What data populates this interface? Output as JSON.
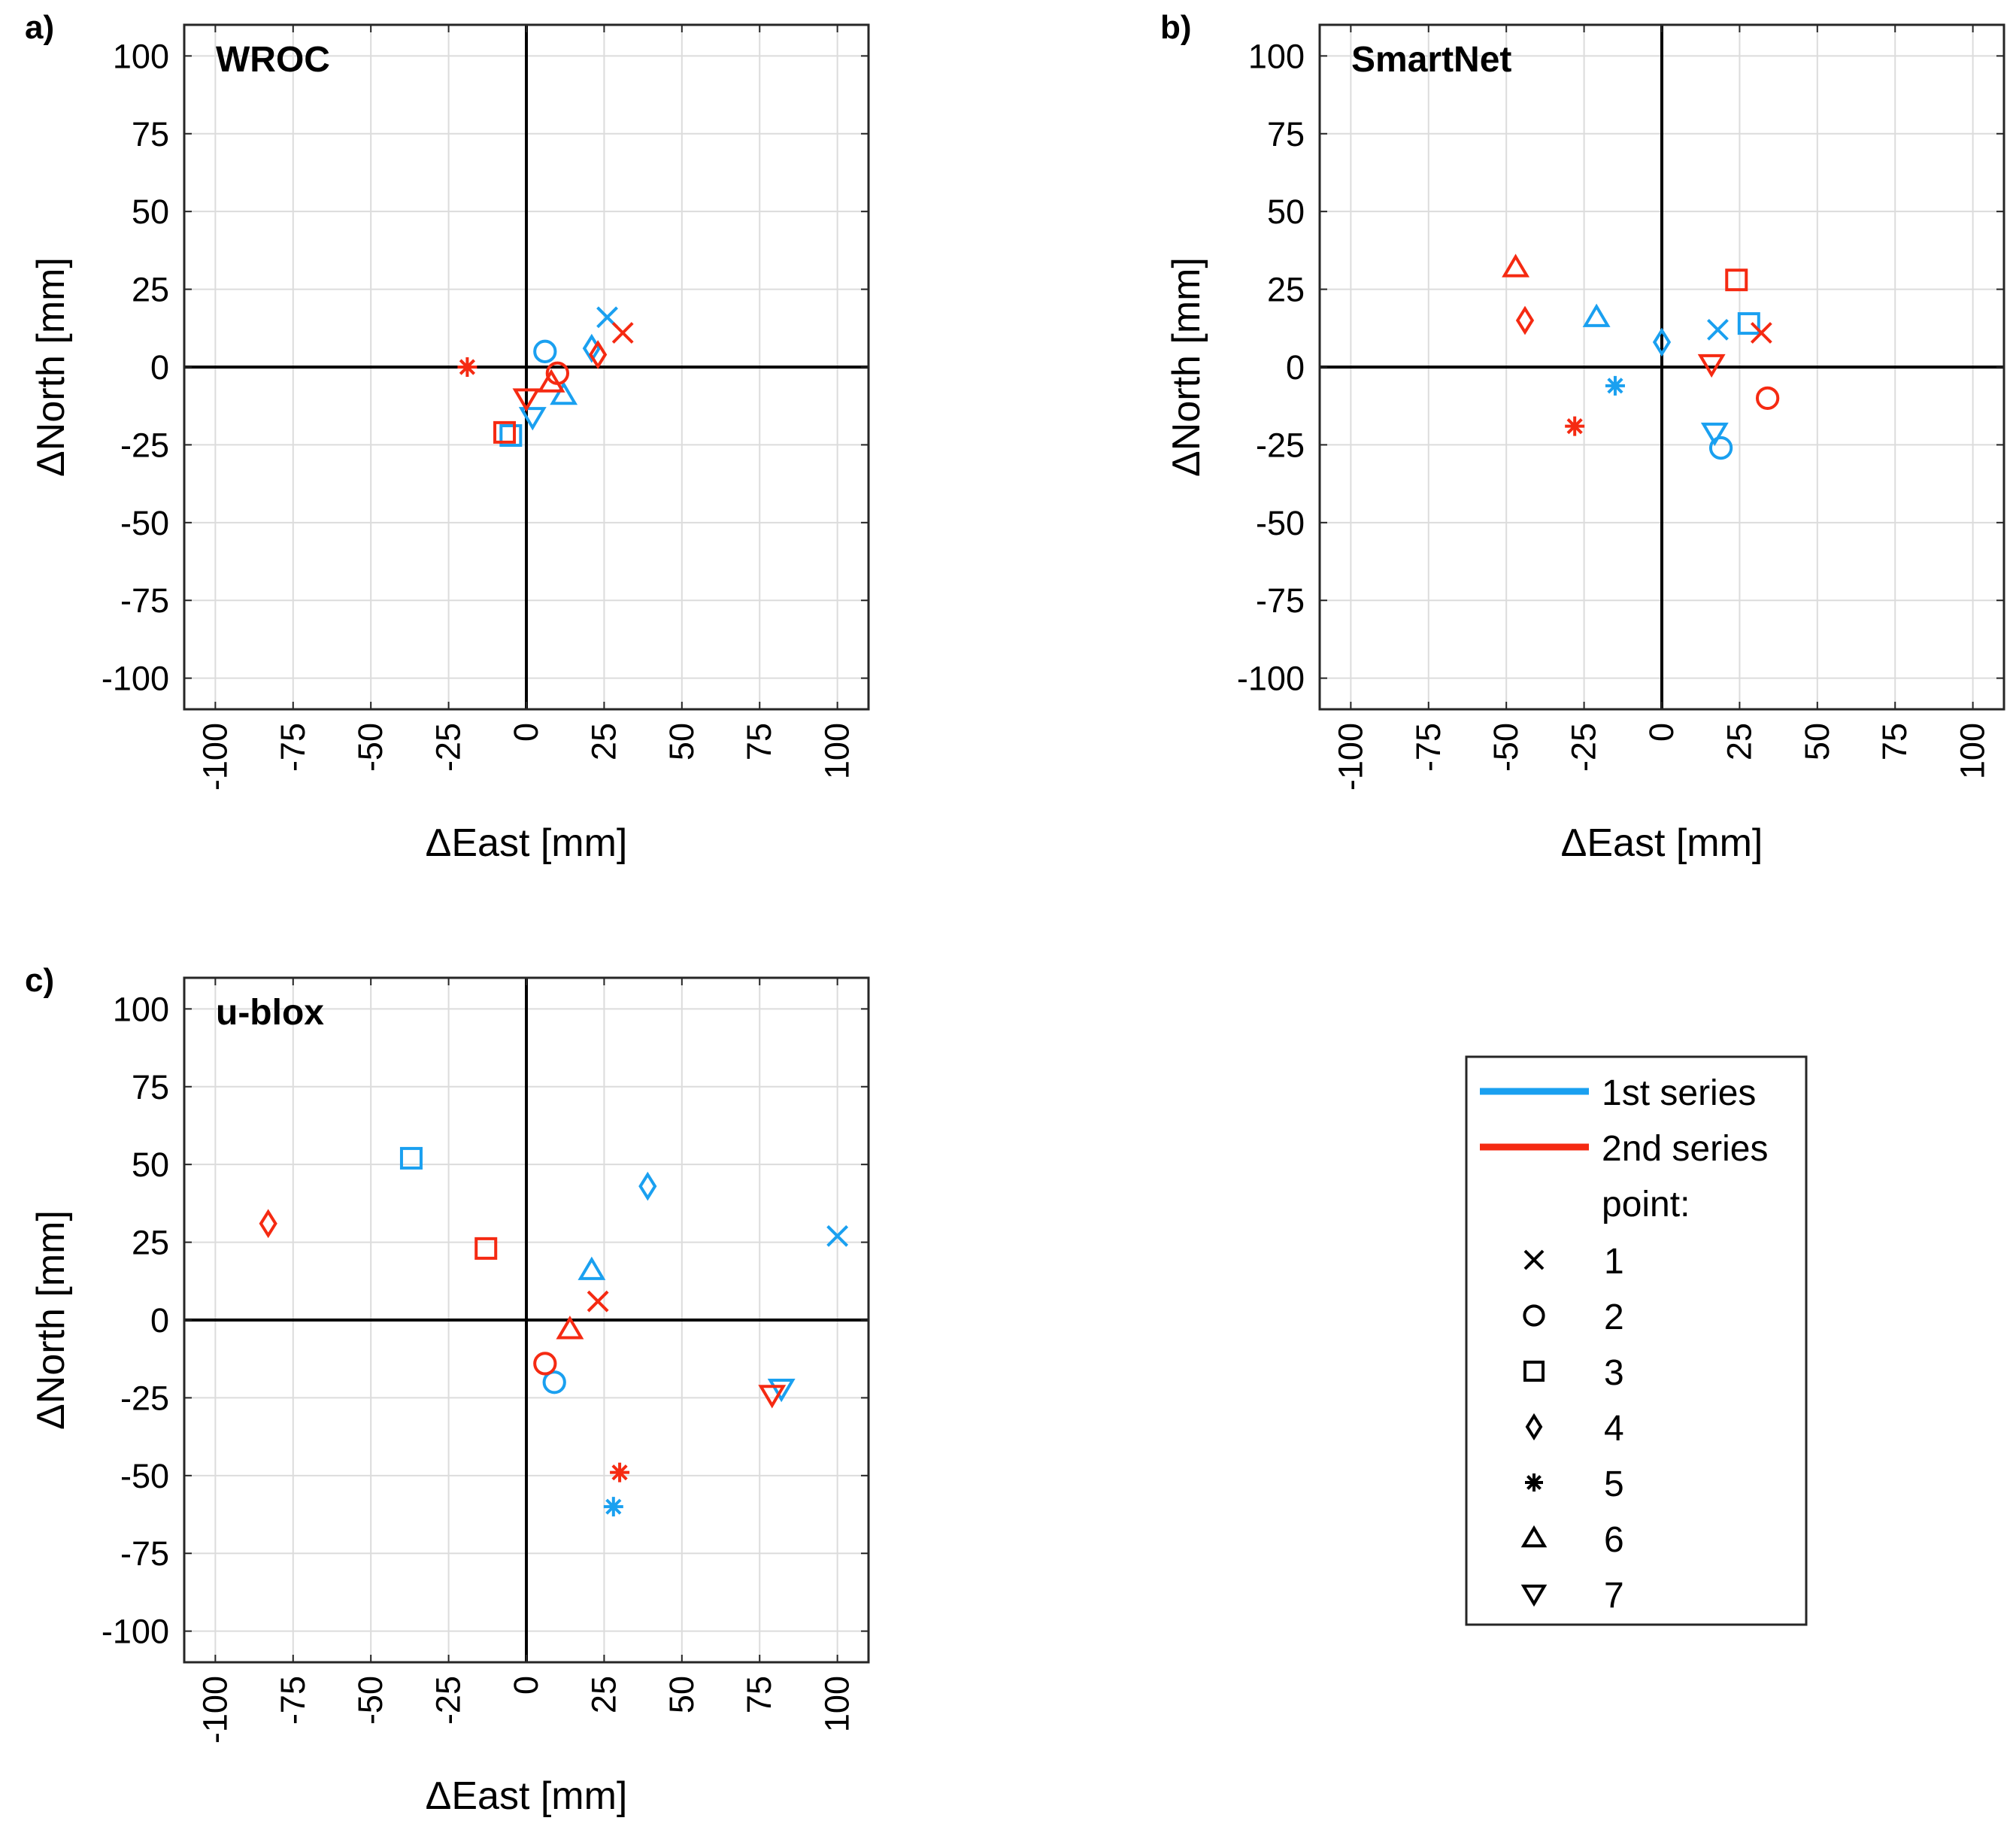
{
  "legend": {
    "series1": "1st series",
    "series2": "2nd series",
    "point_header": "point:",
    "points": [
      {
        "id": "1",
        "marker": "x"
      },
      {
        "id": "2",
        "marker": "o"
      },
      {
        "id": "3",
        "marker": "s"
      },
      {
        "id": "4",
        "marker": "d"
      },
      {
        "id": "5",
        "marker": "*"
      },
      {
        "id": "6",
        "marker": "^"
      },
      {
        "id": "7",
        "marker": "v"
      }
    ]
  },
  "colors": {
    "series1": "#1aa0f0",
    "series2": "#f52a12",
    "axes": "#000000",
    "grid": "#dcdcdc"
  },
  "chart_data": [
    {
      "type": "scatter",
      "panel_label": "a)",
      "title": "WROC",
      "xlabel": "ΔEast [mm]",
      "ylabel": "ΔNorth [mm]",
      "xlim": [
        -110,
        110
      ],
      "ylim": [
        -110,
        110
      ],
      "xticks": [
        -100,
        -75,
        -50,
        -25,
        0,
        25,
        50,
        75,
        100
      ],
      "yticks": [
        100,
        75,
        50,
        25,
        0,
        -25,
        -50,
        -75,
        -100
      ],
      "grid": true,
      "series": [
        {
          "name": "1st series",
          "points": [
            {
              "point": "1",
              "x": 26,
              "y": 16
            },
            {
              "point": "2",
              "x": 6,
              "y": 5
            },
            {
              "point": "3",
              "x": -5,
              "y": -22
            },
            {
              "point": "4",
              "x": 21,
              "y": 6
            },
            {
              "point": "6",
              "x": 12,
              "y": -9
            },
            {
              "point": "7",
              "x": 2,
              "y": -16
            }
          ]
        },
        {
          "name": "2nd series",
          "points": [
            {
              "point": "1",
              "x": 31,
              "y": 11
            },
            {
              "point": "2",
              "x": 10,
              "y": -2
            },
            {
              "point": "3",
              "x": -7,
              "y": -21
            },
            {
              "point": "4",
              "x": 23,
              "y": 4
            },
            {
              "point": "5",
              "x": -19,
              "y": 0
            },
            {
              "point": "6",
              "x": 8,
              "y": -5
            },
            {
              "point": "7",
              "x": 0,
              "y": -10
            }
          ]
        }
      ]
    },
    {
      "type": "scatter",
      "panel_label": "b)",
      "title": "SmartNet",
      "xlabel": "ΔEast [mm]",
      "ylabel": "ΔNorth [mm]",
      "xlim": [
        -110,
        110
      ],
      "ylim": [
        -110,
        110
      ],
      "xticks": [
        -100,
        -75,
        -50,
        -25,
        0,
        25,
        50,
        75,
        100
      ],
      "yticks": [
        100,
        75,
        50,
        25,
        0,
        -25,
        -50,
        -75,
        -100
      ],
      "grid": true,
      "series": [
        {
          "name": "1st series",
          "points": [
            {
              "point": "1",
              "x": 18,
              "y": 12
            },
            {
              "point": "2",
              "x": 19,
              "y": -26
            },
            {
              "point": "3",
              "x": 28,
              "y": 14
            },
            {
              "point": "4",
              "x": 0,
              "y": 8
            },
            {
              "point": "5",
              "x": -15,
              "y": -6
            },
            {
              "point": "6",
              "x": -21,
              "y": 16
            },
            {
              "point": "7",
              "x": 17,
              "y": -21
            }
          ]
        },
        {
          "name": "2nd series",
          "points": [
            {
              "point": "1",
              "x": 32,
              "y": 11
            },
            {
              "point": "2",
              "x": 34,
              "y": -10
            },
            {
              "point": "3",
              "x": 24,
              "y": 28
            },
            {
              "point": "4",
              "x": -44,
              "y": 15
            },
            {
              "point": "5",
              "x": -28,
              "y": -19
            },
            {
              "point": "6",
              "x": -47,
              "y": 32
            },
            {
              "point": "7",
              "x": 16,
              "y": 1
            }
          ]
        }
      ]
    },
    {
      "type": "scatter",
      "panel_label": "c)",
      "title": "u-blox",
      "xlabel": "ΔEast [mm]",
      "ylabel": "ΔNorth [mm]",
      "xlim": [
        -110,
        110
      ],
      "ylim": [
        -110,
        110
      ],
      "xticks": [
        -100,
        -75,
        -50,
        -25,
        0,
        25,
        50,
        75,
        100
      ],
      "yticks": [
        100,
        75,
        50,
        25,
        0,
        -25,
        -50,
        -75,
        -100
      ],
      "grid": true,
      "series": [
        {
          "name": "1st series",
          "points": [
            {
              "point": "1",
              "x": 100,
              "y": 27
            },
            {
              "point": "2",
              "x": 9,
              "y": -20
            },
            {
              "point": "3",
              "x": -37,
              "y": 52
            },
            {
              "point": "4",
              "x": 39,
              "y": 43
            },
            {
              "point": "5",
              "x": 28,
              "y": -60
            },
            {
              "point": "6",
              "x": 21,
              "y": 16
            },
            {
              "point": "7",
              "x": 82,
              "y": -22
            }
          ]
        },
        {
          "name": "2nd series",
          "points": [
            {
              "point": "1",
              "x": 23,
              "y": 6
            },
            {
              "point": "2",
              "x": 6,
              "y": -14
            },
            {
              "point": "3",
              "x": -13,
              "y": 23
            },
            {
              "point": "4",
              "x": -83,
              "y": 31
            },
            {
              "point": "5",
              "x": 30,
              "y": -49
            },
            {
              "point": "6",
              "x": 14,
              "y": -3
            },
            {
              "point": "7",
              "x": 79,
              "y": -24
            }
          ]
        }
      ]
    }
  ]
}
